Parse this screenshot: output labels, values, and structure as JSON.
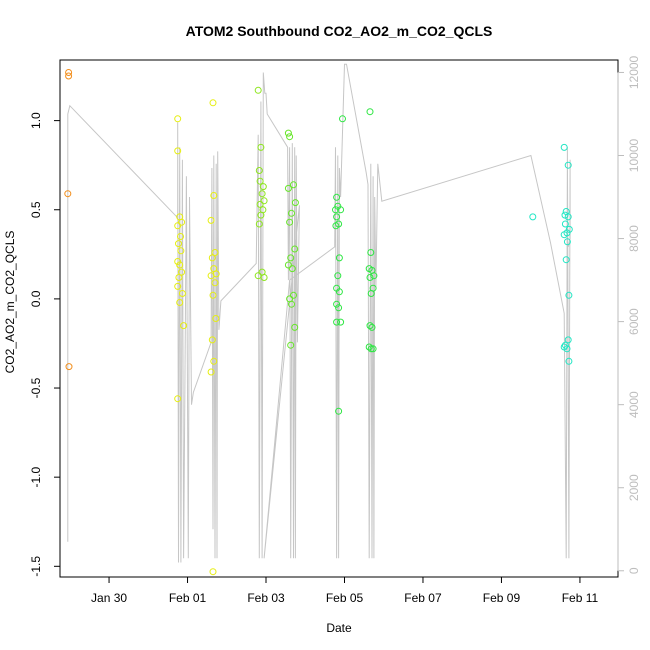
{
  "chart_data": {
    "type": "scatter",
    "title": "ATOM2 Southbound CO2_AO2_m_CO2_QCLS",
    "xlabel": "Date",
    "ylabel": "CO2_AO2_m_CO2_QCLS",
    "x_ticks": [
      {
        "value": 1.25,
        "label": "Jan 30"
      },
      {
        "value": 3.25,
        "label": "Feb 01"
      },
      {
        "value": 5.25,
        "label": "Feb 03"
      },
      {
        "value": 7.25,
        "label": "Feb 05"
      },
      {
        "value": 9.25,
        "label": "Feb 07"
      },
      {
        "value": 11.25,
        "label": "Feb 09"
      },
      {
        "value": 13.25,
        "label": "Feb 11"
      }
    ],
    "xlim": [
      0.0,
      14.22
    ],
    "ylim": [
      -1.56,
      1.34
    ],
    "y_ticks": [
      {
        "value": -1.5,
        "label": "-1.5"
      },
      {
        "value": -1.0,
        "label": "-1.0"
      },
      {
        "value": -0.5,
        "label": "-0.5"
      },
      {
        "value": 0.0,
        "label": "0.0"
      },
      {
        "value": 0.5,
        "label": "0.5"
      },
      {
        "value": 1.0,
        "label": "1.0"
      }
    ],
    "y2_ticks": [
      {
        "value": 0,
        "label": "0"
      },
      {
        "value": 2000,
        "label": "2000"
      },
      {
        "value": 4000,
        "label": "4000"
      },
      {
        "value": 6000,
        "label": "6000"
      },
      {
        "value": 8000,
        "label": "8000"
      },
      {
        "value": 10000,
        "label": "10000"
      },
      {
        "value": 12000,
        "label": "12000"
      }
    ],
    "y2lim": [
      -150,
      12300
    ],
    "grid": false,
    "series": [
      {
        "color": "#f28e1c",
        "points": [
          [
            0.22,
            1.27
          ],
          [
            0.22,
            1.25
          ],
          [
            0.2,
            0.59
          ],
          [
            0.23,
            -0.38
          ]
        ]
      },
      {
        "color": "#e6ee11",
        "points": [
          [
            3.0,
            1.01
          ],
          [
            3.0,
            0.83
          ],
          [
            3.05,
            0.46
          ],
          [
            3.1,
            0.43
          ],
          [
            3.0,
            0.41
          ],
          [
            3.07,
            0.35
          ],
          [
            3.02,
            0.31
          ],
          [
            3.08,
            0.27
          ],
          [
            3.0,
            0.21
          ],
          [
            3.05,
            0.19
          ],
          [
            3.1,
            0.15
          ],
          [
            3.03,
            0.12
          ],
          [
            3.0,
            0.07
          ],
          [
            3.12,
            0.03
          ],
          [
            3.05,
            -0.02
          ],
          [
            3.15,
            -0.15
          ],
          [
            3.0,
            -0.56
          ],
          [
            3.9,
            1.1
          ],
          [
            3.92,
            0.58
          ],
          [
            3.85,
            0.44
          ],
          [
            3.95,
            0.26
          ],
          [
            3.88,
            0.23
          ],
          [
            3.92,
            0.17
          ],
          [
            3.98,
            0.14
          ],
          [
            3.85,
            0.13
          ],
          [
            3.95,
            0.09
          ],
          [
            3.9,
            0.02
          ],
          [
            3.97,
            -0.11
          ],
          [
            3.88,
            -0.23
          ],
          [
            3.92,
            -0.35
          ],
          [
            3.85,
            -0.41
          ],
          [
            3.9,
            -1.53
          ]
        ]
      },
      {
        "color": "#8ee61e",
        "points": [
          [
            5.05,
            1.17
          ],
          [
            5.12,
            0.85
          ],
          [
            5.08,
            0.72
          ],
          [
            5.1,
            0.66
          ],
          [
            5.18,
            0.63
          ],
          [
            5.15,
            0.59
          ],
          [
            5.2,
            0.55
          ],
          [
            5.1,
            0.53
          ],
          [
            5.17,
            0.5
          ],
          [
            5.12,
            0.47
          ],
          [
            5.08,
            0.42
          ],
          [
            5.15,
            0.15
          ],
          [
            5.05,
            0.13
          ],
          [
            5.2,
            0.12
          ]
        ]
      },
      {
        "color": "#66e628",
        "points": [
          [
            5.82,
            0.93
          ],
          [
            5.85,
            0.91
          ],
          [
            5.95,
            0.64
          ],
          [
            5.82,
            0.62
          ],
          [
            6.0,
            0.54
          ],
          [
            5.9,
            0.48
          ],
          [
            5.85,
            0.43
          ],
          [
            5.98,
            0.28
          ],
          [
            5.88,
            0.23
          ],
          [
            5.82,
            0.19
          ],
          [
            5.92,
            0.17
          ],
          [
            5.95,
            0.02
          ],
          [
            5.85,
            0.0
          ],
          [
            5.9,
            -0.03
          ],
          [
            5.98,
            -0.16
          ],
          [
            5.88,
            -0.26
          ]
        ]
      },
      {
        "color": "#2ee643",
        "points": [
          [
            7.2,
            1.01
          ],
          [
            7.05,
            0.57
          ],
          [
            7.08,
            0.52
          ],
          [
            7.02,
            0.5
          ],
          [
            7.15,
            0.5
          ],
          [
            7.05,
            0.46
          ],
          [
            7.1,
            0.42
          ],
          [
            7.03,
            0.41
          ],
          [
            7.12,
            0.23
          ],
          [
            7.08,
            0.13
          ],
          [
            7.05,
            0.06
          ],
          [
            7.12,
            0.04
          ],
          [
            7.05,
            -0.03
          ],
          [
            7.1,
            -0.05
          ],
          [
            7.15,
            -0.13
          ],
          [
            7.05,
            -0.13
          ],
          [
            7.1,
            -0.63
          ],
          [
            7.9,
            1.05
          ],
          [
            7.92,
            0.26
          ],
          [
            7.88,
            0.17
          ],
          [
            7.95,
            0.16
          ],
          [
            8.0,
            0.13
          ],
          [
            7.9,
            0.12
          ],
          [
            7.98,
            0.06
          ],
          [
            7.93,
            0.03
          ],
          [
            7.9,
            -0.15
          ],
          [
            7.95,
            -0.16
          ],
          [
            7.88,
            -0.27
          ],
          [
            7.93,
            -0.28
          ],
          [
            7.98,
            -0.28
          ]
        ]
      },
      {
        "color": "#22e6c4",
        "points": [
          [
            12.05,
            0.46
          ],
          [
            12.85,
            0.85
          ],
          [
            12.95,
            0.75
          ],
          [
            12.9,
            0.49
          ],
          [
            12.87,
            0.47
          ],
          [
            12.95,
            0.46
          ],
          [
            12.88,
            0.42
          ],
          [
            12.98,
            0.39
          ],
          [
            12.92,
            0.37
          ],
          [
            12.85,
            0.36
          ],
          [
            12.93,
            0.32
          ],
          [
            12.9,
            0.22
          ],
          [
            12.97,
            0.02
          ],
          [
            12.95,
            -0.23
          ],
          [
            12.88,
            -0.26
          ],
          [
            12.85,
            -0.27
          ],
          [
            12.92,
            -0.28
          ],
          [
            12.97,
            -0.35
          ]
        ]
      }
    ],
    "overlay_line": {
      "color": "#c6c6c6",
      "axis": "right",
      "points": [
        [
          0.2,
          700
        ],
        [
          0.2,
          11000
        ],
        [
          0.25,
          11200
        ],
        [
          3.0,
          8500
        ],
        [
          3.0,
          10800
        ],
        [
          3.02,
          200
        ],
        [
          3.05,
          10200
        ],
        [
          3.08,
          200
        ],
        [
          3.12,
          9900
        ],
        [
          3.15,
          300
        ],
        [
          3.18,
          4100
        ],
        [
          3.22,
          9500
        ],
        [
          3.27,
          300
        ],
        [
          3.3,
          9000
        ],
        [
          3.35,
          4000
        ],
        [
          3.4,
          4300
        ],
        [
          3.85,
          5500
        ],
        [
          3.87,
          9700
        ],
        [
          3.9,
          1000
        ],
        [
          3.92,
          10000
        ],
        [
          3.95,
          300
        ],
        [
          3.98,
          9800
        ],
        [
          4.0,
          300
        ],
        [
          4.02,
          10100
        ],
        [
          4.05,
          5800
        ],
        [
          4.1,
          6500
        ],
        [
          5.0,
          7400
        ],
        [
          5.05,
          10500
        ],
        [
          5.08,
          300
        ],
        [
          5.12,
          11300
        ],
        [
          5.15,
          300
        ],
        [
          5.18,
          12000
        ],
        [
          5.22,
          11500
        ],
        [
          5.25,
          11500
        ],
        [
          5.28,
          11000
        ],
        [
          5.8,
          10200
        ],
        [
          5.82,
          7000
        ],
        [
          5.85,
          10200
        ],
        [
          5.88,
          300
        ],
        [
          5.92,
          10300
        ],
        [
          5.95,
          300
        ],
        [
          5.98,
          10200
        ],
        [
          6.0,
          300
        ],
        [
          6.02,
          10000
        ],
        [
          6.05,
          5500
        ],
        [
          6.1,
          8800
        ],
        [
          5.2,
          300
        ],
        [
          5.85,
          7000
        ],
        [
          7.0,
          7800
        ],
        [
          7.02,
          10200
        ],
        [
          7.05,
          300
        ],
        [
          7.08,
          10000
        ],
        [
          7.1,
          300
        ],
        [
          7.12,
          9700
        ],
        [
          7.15,
          9000
        ],
        [
          7.25,
          12200
        ],
        [
          7.3,
          12200
        ],
        [
          7.8,
          9600
        ],
        [
          7.85,
          9300
        ],
        [
          7.88,
          300
        ],
        [
          7.92,
          9800
        ],
        [
          7.95,
          300
        ],
        [
          7.98,
          9500
        ],
        [
          8.0,
          300
        ],
        [
          8.02,
          9000
        ],
        [
          8.05,
          6800
        ],
        [
          8.1,
          9800
        ],
        [
          8.2,
          8900
        ],
        [
          12.0,
          10000
        ],
        [
          12.5,
          7900
        ],
        [
          12.85,
          6200
        ],
        [
          12.9,
          300
        ],
        [
          12.93,
          10200
        ],
        [
          12.97,
          300
        ],
        [
          13.0,
          9900
        ],
        [
          13.0,
          8000
        ],
        [
          12.95,
          7800
        ]
      ]
    }
  }
}
